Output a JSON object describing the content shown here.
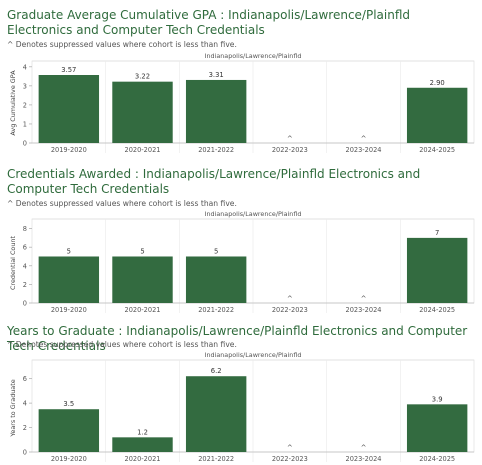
{
  "colors": {
    "bar": "#336b40",
    "title": "#2f6b3c",
    "axis": "#666666",
    "grid": "#e6e6e6"
  },
  "chart_data": [
    {
      "type": "bar",
      "title": "Graduate Average Cumulative GPA : Indianapolis/Lawrence/Plainfld Electronics and Computer Tech Credentials",
      "note": "^ Denotes suppressed values where cohort is less than five.",
      "panel_label": "Indianapolis/Lawrence/Plainfld",
      "ylabel": "Avg Cumulative GPA",
      "yticks": [
        "4",
        "3",
        "2",
        "1",
        "0"
      ],
      "ylim": [
        0,
        4.2
      ],
      "categories": [
        "2019-2020",
        "2020-2021",
        "2021-2022",
        "2022-2023",
        "2023-2024",
        "2024-2025"
      ],
      "values": [
        3.57,
        3.22,
        3.31,
        null,
        null,
        2.9
      ],
      "labels": [
        "3.57",
        "3.22",
        "3.31",
        "^",
        "^",
        "2.90"
      ]
    },
    {
      "type": "bar",
      "title": "Credentials Awarded : Indianapolis/Lawrence/Plainfld Electronics and Computer Tech Credentials",
      "note": "^ Denotes suppressed values where cohort is less than five.",
      "panel_label": "Indianapolis/Lawrence/Plainfld",
      "ylabel": "Credential Count",
      "yticks": [
        "8",
        "6",
        "4",
        "2",
        "0"
      ],
      "ylim": [
        0,
        8.6
      ],
      "categories": [
        "2019-2020",
        "2020-2021",
        "2021-2022",
        "2022-2023",
        "2023-2024",
        "2024-2025"
      ],
      "values": [
        5,
        5,
        5,
        null,
        null,
        7
      ],
      "labels": [
        "5",
        "5",
        "5",
        "^",
        "^",
        "7"
      ]
    },
    {
      "type": "bar",
      "title": "Years to Graduate : Indianapolis/Lawrence/Plainfld Electronics and Computer Tech Credentials",
      "note": "^ Denotes suppressed values where cohort is less than five.",
      "panel_label": "Indianapolis/Lawrence/Plainfld",
      "ylabel": "Years to Graduate",
      "yticks": [
        "6",
        "4",
        "2",
        "0"
      ],
      "ylim": [
        0,
        7.2
      ],
      "categories": [
        "2019-2020",
        "2020-2021",
        "2021-2022",
        "2022-2023",
        "2023-2024",
        "2024-2025"
      ],
      "values": [
        3.5,
        1.2,
        6.2,
        null,
        null,
        3.9
      ],
      "labels": [
        "3.5",
        "1.2",
        "6.2",
        "^",
        "^",
        "3.9"
      ]
    }
  ]
}
